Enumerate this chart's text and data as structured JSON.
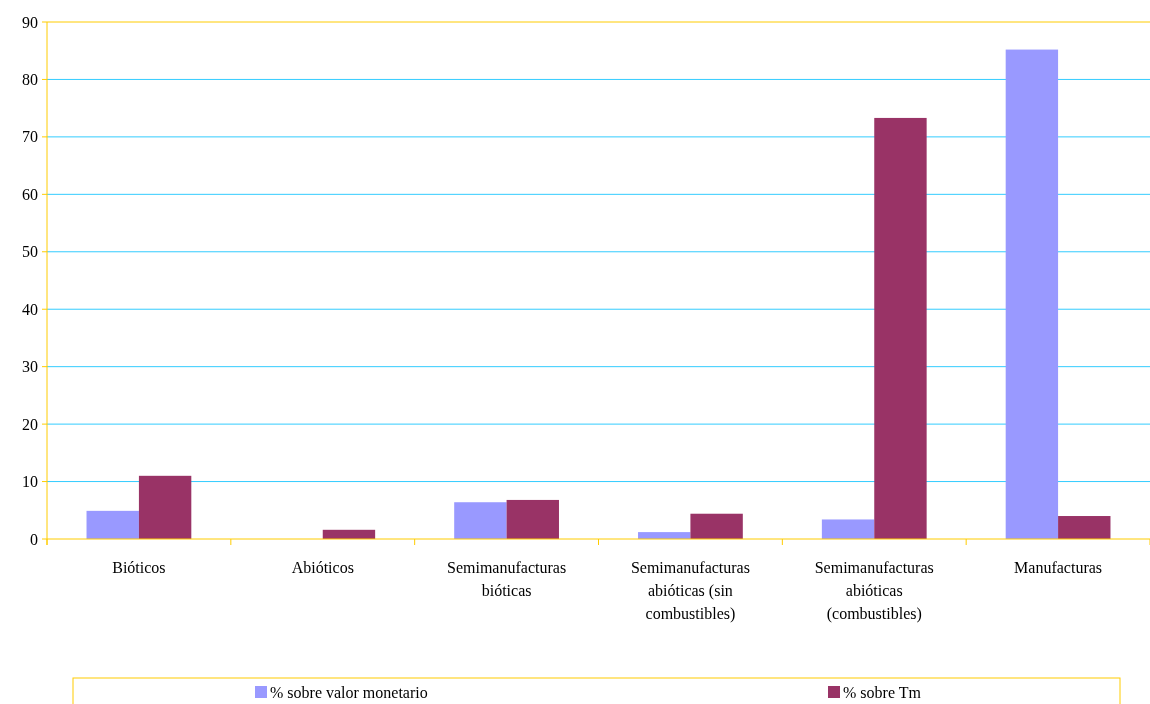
{
  "chart_data": {
    "type": "bar",
    "categories": [
      "Bióticos",
      "Abióticos",
      "Semimanufacturas bióticas",
      "Semimanufacturas abióticas (sin combustibles)",
      "Semimanufacturas abióticas (combustibles)",
      "Manufacturas"
    ],
    "series": [
      {
        "name": "% sobre valor monetario",
        "color": "#9999ff",
        "values": [
          4.9,
          0,
          6.4,
          1.2,
          3.4,
          85.2
        ]
      },
      {
        "name": "% sobre Tm",
        "color": "#993366",
        "values": [
          11.0,
          1.6,
          6.8,
          4.4,
          73.3,
          4.0
        ]
      }
    ],
    "ylim": [
      0,
      90
    ],
    "yticks": [
      0,
      10,
      20,
      30,
      40,
      50,
      60,
      70,
      80,
      90
    ],
    "grid": "y",
    "legend": "bottom"
  }
}
